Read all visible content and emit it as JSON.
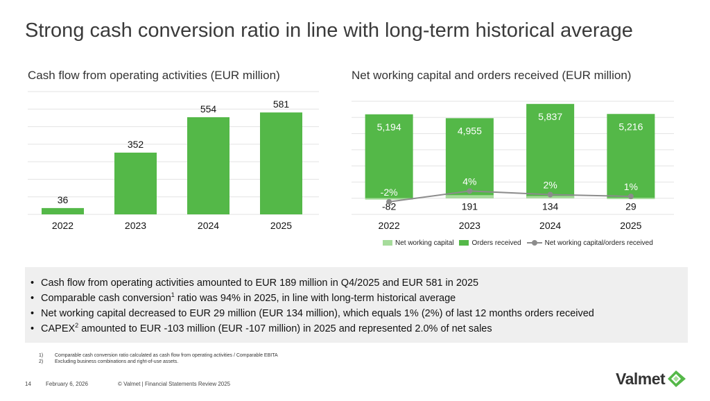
{
  "title": "Strong cash conversion ratio in line with long-term historical average",
  "chart_data": [
    {
      "type": "bar",
      "title": "Cash flow from operating activities (EUR million)",
      "categories": [
        "2022",
        "2023",
        "2024",
        "2025"
      ],
      "values": [
        36,
        352,
        554,
        581
      ],
      "data_labels": [
        "36",
        "352",
        "554",
        "581"
      ],
      "ylim": [
        0,
        700
      ],
      "grid": true,
      "bar_color": "#54b848"
    },
    {
      "type": "bar",
      "title": "Net working capital and orders received (EUR million)",
      "categories": [
        "2022",
        "2023",
        "2024",
        "2025"
      ],
      "series": [
        {
          "name": "Net working capital",
          "values": [
            -82,
            191,
            134,
            29
          ],
          "labels": [
            "-82",
            "191",
            "134",
            "29"
          ],
          "color": "#a6dc9b"
        },
        {
          "name": "Orders received",
          "values": [
            5194,
            4955,
            5837,
            5216
          ],
          "labels": [
            "5,194",
            "4,955",
            "5,837",
            "5,216"
          ],
          "color": "#54b848"
        },
        {
          "name": "Net working capital/orders received",
          "type": "line",
          "values": [
            -2,
            4,
            2,
            1
          ],
          "labels": [
            "-2%",
            "4%",
            "2%",
            "1%"
          ],
          "color": "#8c8c8c"
        }
      ],
      "ylim": [
        -1000,
        6000
      ],
      "grid": true,
      "legend": "bottom"
    }
  ],
  "legend": {
    "nwc": "Net working capital",
    "orders": "Orders received",
    "ratio": "Net working capital/orders received"
  },
  "bullets": {
    "b1": "Cash flow from operating activities amounted to EUR 189 million in Q4/2025 and EUR 581 in 2025",
    "b2_pre": "Comparable cash conversion",
    "b2_sup": "1",
    "b2_post": " ratio was 94% in 2025, in line with long-term historical average",
    "b3": "Net working capital decreased to EUR 29 million (EUR 134 million), which equals 1% (2%) of last 12 months orders received",
    "b4_pre": "CAPEX",
    "b4_sup": "2",
    "b4_post": " amounted to EUR -103 million (EUR -107 million) in 2025 and represented 2.0% of net sales"
  },
  "footnotes": [
    {
      "num": "1)",
      "text": "Comparable cash conversion ratio calculated as cash flow from operating activities / Comparable EBITA"
    },
    {
      "num": "2)",
      "text": "Excluding business combinations and right-of-use assets."
    }
  ],
  "footer": {
    "page": "14",
    "date": "February 6, 2026",
    "copyright": "© Valmet  | Financial Statements Review 2025"
  },
  "logo": {
    "text": "Valmet",
    "colors": [
      "#54b848",
      "#a6dc9b",
      "#333333"
    ]
  }
}
